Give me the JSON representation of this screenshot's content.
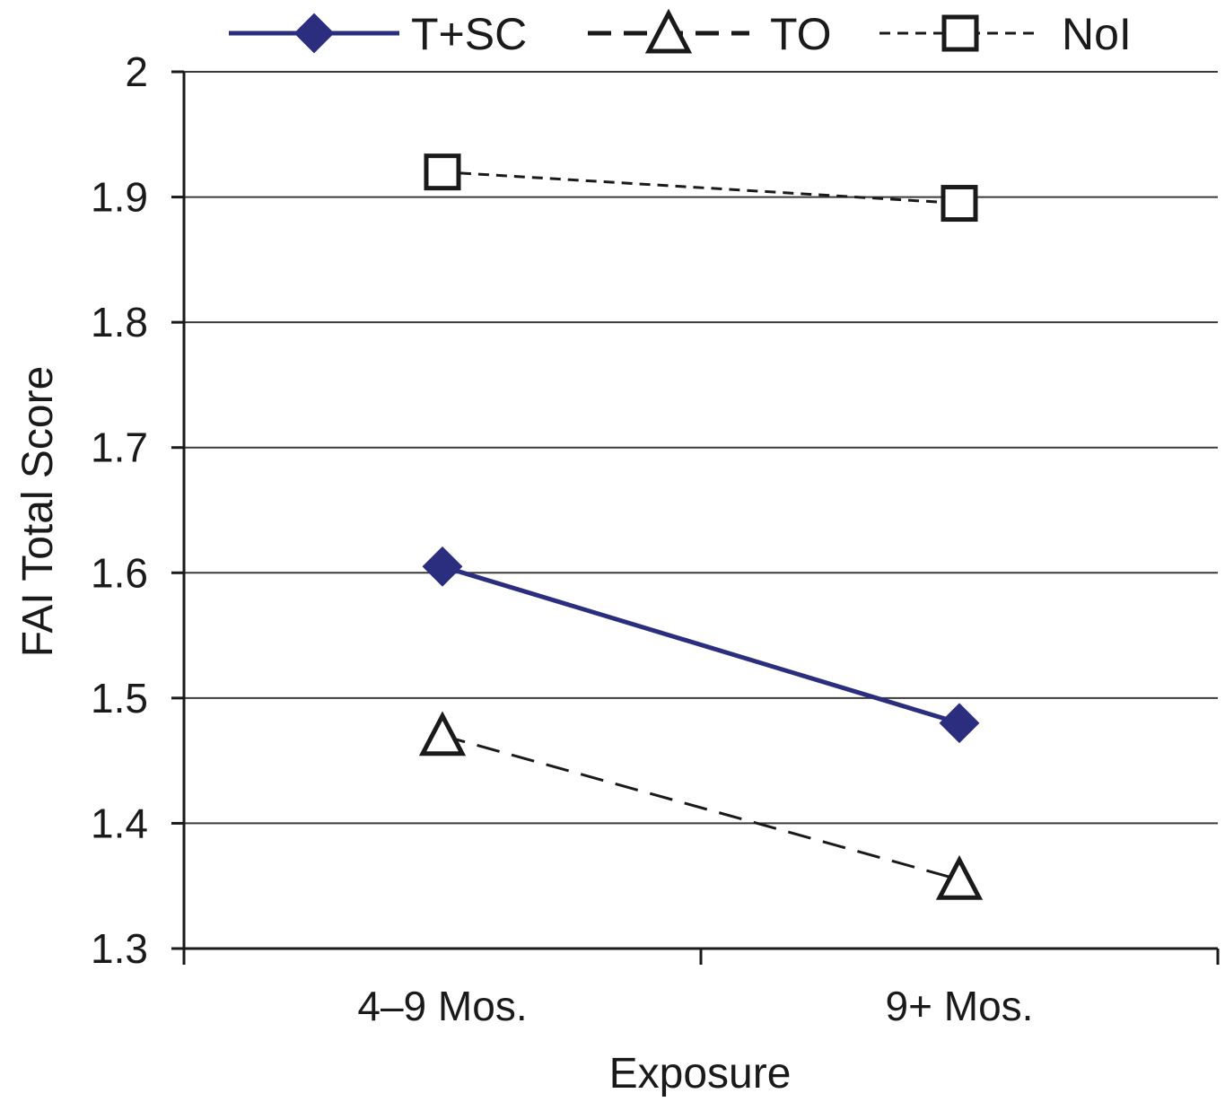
{
  "chart_data": {
    "type": "line",
    "title": "",
    "xlabel": "Exposure",
    "ylabel": "FAI Total Score",
    "categories": [
      "4–9 Mos.",
      "9+ Mos."
    ],
    "ylim": [
      1.3,
      2.0
    ],
    "yticks": [
      1.3,
      1.4,
      1.5,
      1.6,
      1.7,
      1.8,
      1.9,
      2.0
    ],
    "ytick_labels": [
      "1.3",
      "1.4",
      "1.5",
      "1.6",
      "1.7",
      "1.8",
      "1.9",
      "2"
    ],
    "grid": "horizontal",
    "legend_position": "top",
    "series": [
      {
        "name": "T+SC",
        "values": [
          1.605,
          1.48
        ],
        "color": "#2b2d7e",
        "line": "solid",
        "marker": "diamond-filled"
      },
      {
        "name": "TO",
        "values": [
          1.47,
          1.355
        ],
        "color": "#1a1a1a",
        "line": "dashed",
        "marker": "triangle-open"
      },
      {
        "name": "NoI",
        "values": [
          1.92,
          1.895
        ],
        "color": "#1a1a1a",
        "line": "dotted-dash",
        "marker": "square-open"
      }
    ]
  }
}
